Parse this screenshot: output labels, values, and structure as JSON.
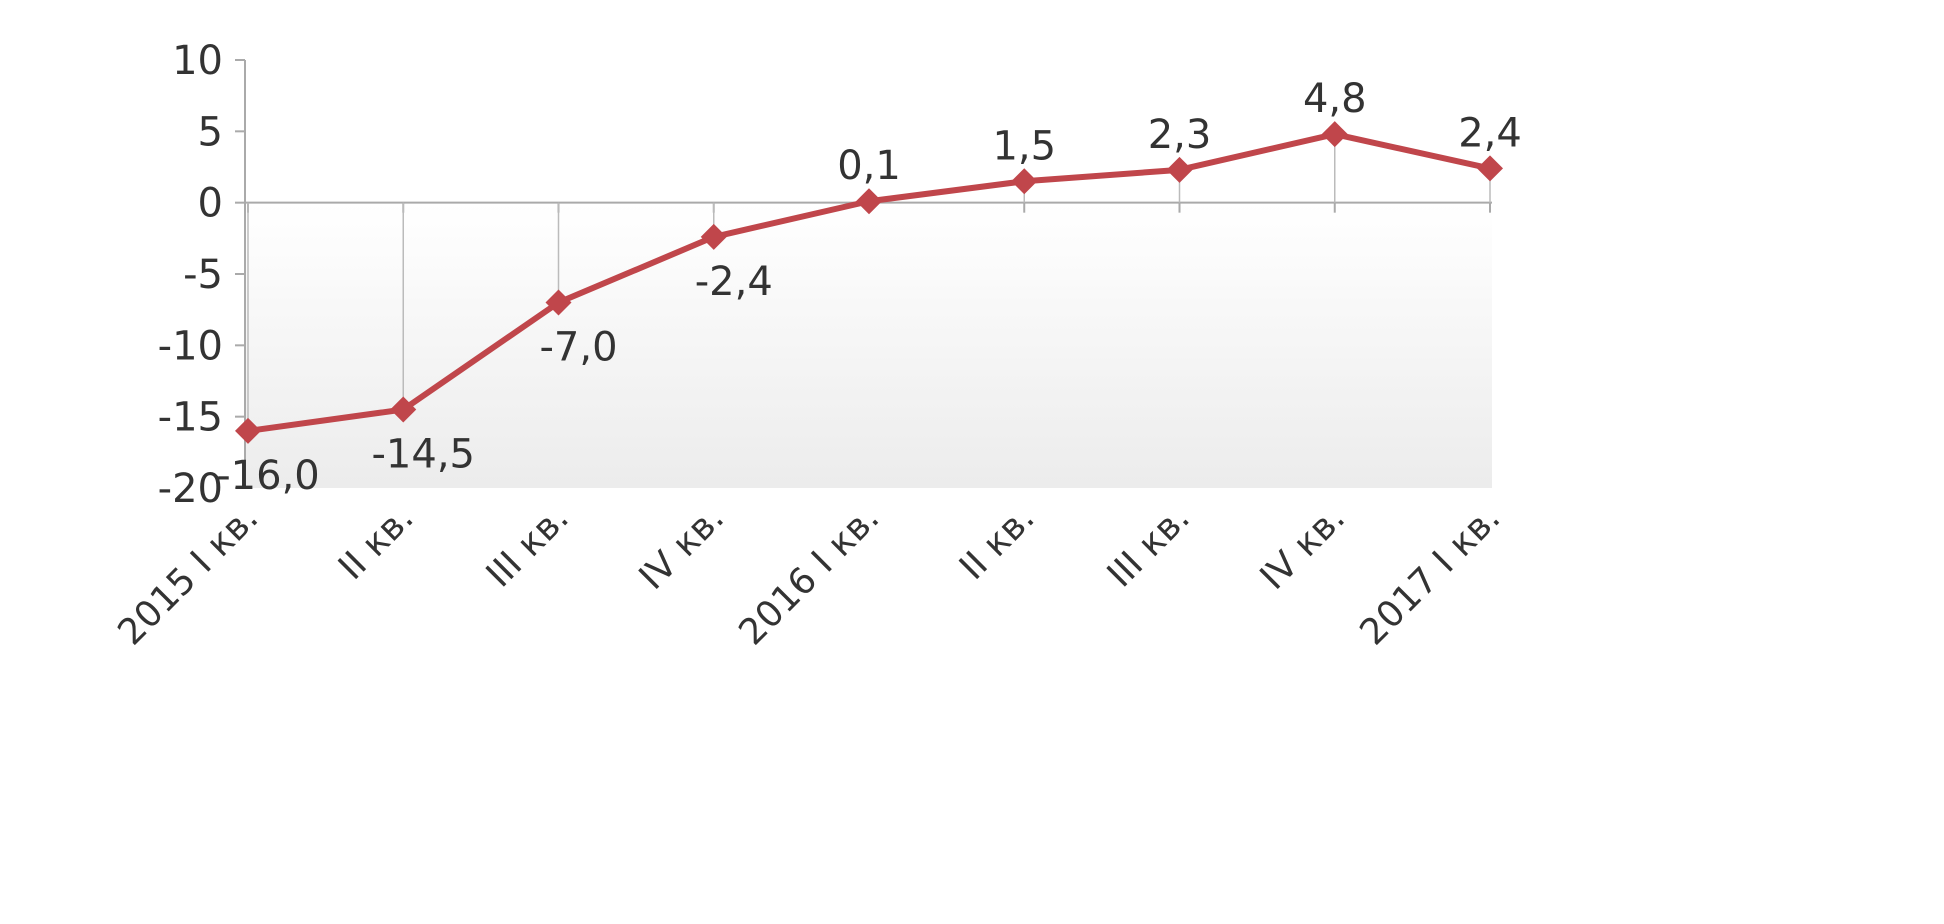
{
  "chart_data": {
    "type": "line",
    "title": "",
    "xlabel": "",
    "ylabel": "",
    "categories": [
      "2015 I кв.",
      "II кв.",
      "III кв.",
      "IV кв.",
      "2016 I кв.",
      "II кв.",
      "III кв.",
      "IV кв.",
      "2017 I кв."
    ],
    "values": [
      -16.0,
      -14.5,
      -7.0,
      -2.4,
      0.1,
      1.5,
      2.3,
      4.8,
      2.4
    ],
    "data_labels": [
      "-16,0",
      "-14,5",
      "-7,0",
      "-2,4",
      "0,1",
      "1,5",
      "2,3",
      "4,8",
      "2,4"
    ],
    "ylim": [
      -20,
      10
    ],
    "yticks": [
      10,
      5,
      0,
      -5,
      -10,
      -15,
      -20
    ],
    "ytick_labels": [
      "10",
      "5",
      "0",
      "-5",
      "-10",
      "-15",
      "-20"
    ],
    "grid": false,
    "drop_lines": true,
    "marker": "diamond",
    "colors": {
      "line": "#c0464b",
      "axis": "#aaaaaa",
      "plot_bg_bottom": "#efefef"
    }
  }
}
